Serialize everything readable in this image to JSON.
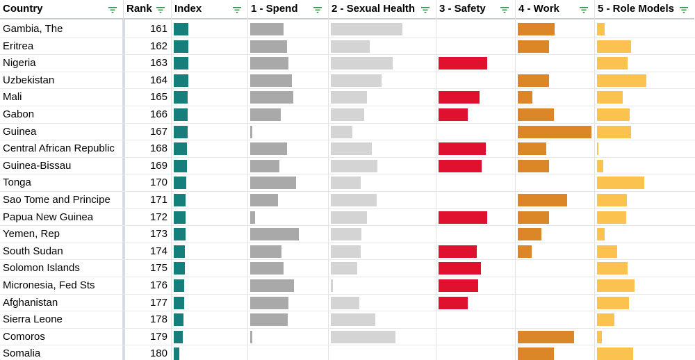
{
  "columns": [
    {
      "key": "country",
      "label": "Country"
    },
    {
      "key": "rank",
      "label": "Rank"
    },
    {
      "key": "index",
      "label": "Index"
    },
    {
      "key": "spend",
      "label": "1 - Spend"
    },
    {
      "key": "sexual_health",
      "label": "2 - Sexual Health"
    },
    {
      "key": "safety",
      "label": "3 - Safety"
    },
    {
      "key": "work",
      "label": "4 - Work"
    },
    {
      "key": "role_models",
      "label": "5 - Role Models"
    }
  ],
  "colors": {
    "index": "#177f7b",
    "spend": "#a9a9a9",
    "sexual_health": "#d4d4d4",
    "safety": "#e0112f",
    "work": "#db8627",
    "role_models": "#fcc24f",
    "filter_icon": "#2e8a45"
  },
  "rows": [
    {
      "country": "Gambia, The",
      "rank": "161",
      "index": 0.46,
      "spend": 0.54,
      "sexual_health": 1.0,
      "safety": 0,
      "work": 0.5,
      "role_models": 0.13
    },
    {
      "country": "Eritrea",
      "rank": "162",
      "index": 0.46,
      "spend": 0.6,
      "sexual_health": 0.54,
      "safety": 0,
      "work": 0.42,
      "role_models": 0.57
    },
    {
      "country": "Nigeria",
      "rank": "163",
      "index": 0.45,
      "spend": 0.62,
      "sexual_health": 0.86,
      "safety": 0.96,
      "work": 0,
      "role_models": 0.51
    },
    {
      "country": "Uzbekistan",
      "rank": "164",
      "index": 0.45,
      "spend": 0.68,
      "sexual_health": 0.71,
      "safety": 0,
      "work": 0.42,
      "role_models": 0.83
    },
    {
      "country": "Mali",
      "rank": "165",
      "index": 0.43,
      "spend": 0.71,
      "sexual_health": 0.5,
      "safety": 0.81,
      "work": 0.2,
      "role_models": 0.43
    },
    {
      "country": "Gabon",
      "rank": "166",
      "index": 0.43,
      "spend": 0.5,
      "sexual_health": 0.47,
      "safety": 0.58,
      "work": 0.49,
      "role_models": 0.55
    },
    {
      "country": "Guinea",
      "rank": "167",
      "index": 0.43,
      "spend": 0.03,
      "sexual_health": 0.3,
      "safety": 0,
      "work": 1.0,
      "role_models": 0.57
    },
    {
      "country": "Central African Republic",
      "rank": "168",
      "index": 0.42,
      "spend": 0.6,
      "sexual_health": 0.57,
      "safety": 0.93,
      "work": 0.39,
      "role_models": 0.02
    },
    {
      "country": "Guinea-Bissau",
      "rank": "169",
      "index": 0.41,
      "spend": 0.48,
      "sexual_health": 0.65,
      "safety": 0.85,
      "work": 0.42,
      "role_models": 0.1
    },
    {
      "country": "Tonga",
      "rank": "170",
      "index": 0.4,
      "spend": 0.75,
      "sexual_health": 0.42,
      "safety": 0,
      "work": 0,
      "role_models": 0.79
    },
    {
      "country": "Sao Tome and Principe",
      "rank": "171",
      "index": 0.38,
      "spend": 0.45,
      "sexual_health": 0.64,
      "safety": 0,
      "work": 0.67,
      "role_models": 0.5
    },
    {
      "country": "Papua New Guinea",
      "rank": "172",
      "index": 0.38,
      "spend": 0.08,
      "sexual_health": 0.5,
      "safety": 0.96,
      "work": 0.42,
      "role_models": 0.49
    },
    {
      "country": "Yemen, Rep",
      "rank": "173",
      "index": 0.36,
      "spend": 0.8,
      "sexual_health": 0.43,
      "safety": 0,
      "work": 0.32,
      "role_models": 0.13
    },
    {
      "country": "South Sudan",
      "rank": "174",
      "index": 0.34,
      "spend": 0.51,
      "sexual_health": 0.42,
      "safety": 0.76,
      "work": 0.19,
      "role_models": 0.34
    },
    {
      "country": "Solomon Islands",
      "rank": "175",
      "index": 0.34,
      "spend": 0.54,
      "sexual_health": 0.37,
      "safety": 0.83,
      "work": 0,
      "role_models": 0.51
    },
    {
      "country": "Micronesia, Fed Sts",
      "rank": "176",
      "index": 0.33,
      "spend": 0.72,
      "sexual_health": 0.03,
      "safety": 0.78,
      "work": 0,
      "role_models": 0.63
    },
    {
      "country": "Afghanistan",
      "rank": "177",
      "index": 0.33,
      "spend": 0.63,
      "sexual_health": 0.4,
      "safety": 0.58,
      "work": 0,
      "role_models": 0.53
    },
    {
      "country": "Sierra Leone",
      "rank": "178",
      "index": 0.3,
      "spend": 0.61,
      "sexual_health": 0.62,
      "safety": 0,
      "work": 0,
      "role_models": 0.29
    },
    {
      "country": "Comoros",
      "rank": "179",
      "index": 0.29,
      "spend": 0.03,
      "sexual_health": 0.9,
      "safety": 0,
      "work": 0.76,
      "role_models": 0.08
    },
    {
      "country": "Somalia",
      "rank": "180",
      "index": 0.18,
      "spend": 0.0,
      "sexual_health": 0,
      "safety": 0,
      "work": 0.49,
      "role_models": 0.6
    }
  ]
}
